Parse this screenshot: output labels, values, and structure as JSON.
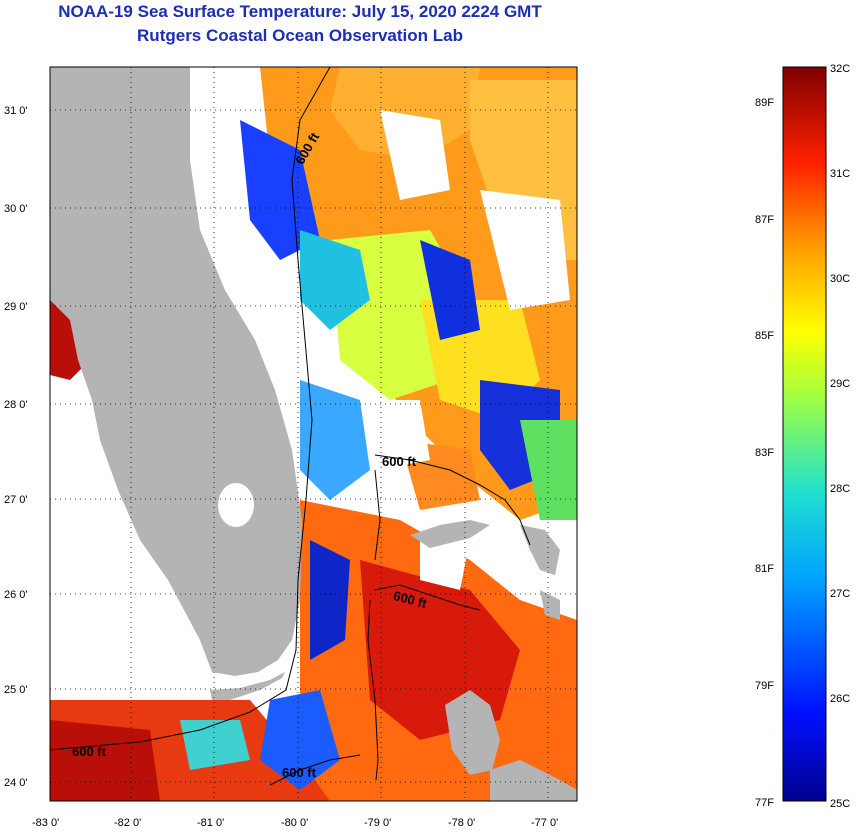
{
  "header": {
    "title": "NOAA-19 Sea Surface Temperature:  July 15, 2020 2224 GMT",
    "subtitle": "Rutgers Coastal Ocean Observation Lab"
  },
  "map": {
    "lon_ticks": [
      "-83 0'",
      "-82 0'",
      "-81 0'",
      "-80 0'",
      "-79 0'",
      "-78 0'",
      "-77 0'"
    ],
    "lat_ticks": [
      "31 0'",
      "30 0'",
      "29 0'",
      "28 0'",
      "27 0'",
      "26 0'",
      "25 0'",
      "24 0'"
    ],
    "contour_labels": [
      "600 ft",
      "600 ft",
      "600 ft",
      "600 ft",
      "600 ft"
    ],
    "colors": {
      "land": "#b4b4b4",
      "cloud": "#ffffff"
    }
  },
  "colorbar": {
    "celsius": [
      "32C",
      "31C",
      "30C",
      "29C",
      "28C",
      "27C",
      "26C",
      "25C"
    ],
    "fahrenheit": [
      "89F",
      "87F",
      "85F",
      "83F",
      "81F",
      "79F",
      "77F"
    ]
  }
}
